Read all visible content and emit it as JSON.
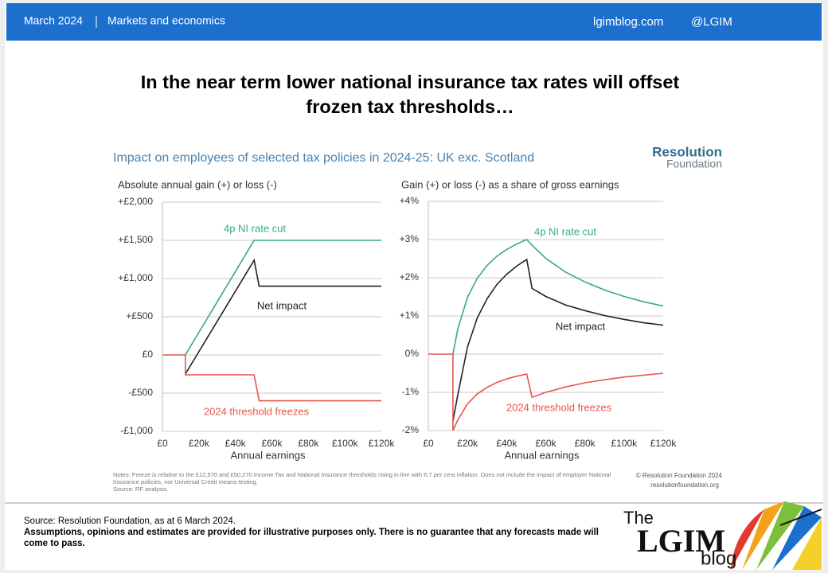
{
  "header": {
    "date": "March 2024",
    "section": "Markets and economics",
    "site": "lgimblog.com",
    "handle": "@LGIM"
  },
  "title": "In the near term lower national insurance tax rates will offset frozen tax thresholds…",
  "figure": {
    "title": "Impact on employees of selected tax policies in 2024-25: UK exc. Scotland",
    "brand": [
      "Resolution",
      "Foundation"
    ],
    "notes": "Notes: Freeze is relative to the £12,570 and £50,270 Income Tax and National Insurance thresholds rising in line with 6.7 per cent inflation. Does not include the impact of employer National Insurance policies, nor Universal Credit means-testing.",
    "source": "Source: RF analysis.",
    "copyright": "© Resolution Foundation 2024",
    "url": "resolutionfoundation.org"
  },
  "chart_data": [
    {
      "type": "line",
      "ylabel": "Absolute annual gain (+) or loss (-)",
      "xlabel": "Annual earnings",
      "xlim": [
        0,
        120000
      ],
      "xticks": [
        {
          "value": 0,
          "label": "£0"
        },
        {
          "value": 20000,
          "label": "£20k"
        },
        {
          "value": 40000,
          "label": "£40k"
        },
        {
          "value": 60000,
          "label": "£60k"
        },
        {
          "value": 80000,
          "label": "£80k"
        },
        {
          "value": 100000,
          "label": "£100k"
        },
        {
          "value": 120000,
          "label": "£120k"
        }
      ],
      "ylim": [
        -1000,
        2000
      ],
      "yticks": [
        {
          "value": 2000,
          "label": "+£2,000"
        },
        {
          "value": 1500,
          "label": "+£1,500"
        },
        {
          "value": 1000,
          "label": "+£1,000"
        },
        {
          "value": 500,
          "label": "+£500"
        },
        {
          "value": 0,
          "label": "£0"
        },
        {
          "value": -500,
          "label": "-£500"
        },
        {
          "value": -1000,
          "label": "-£1,000"
        }
      ],
      "grid": true,
      "series": [
        {
          "name": "4p NI rate cut",
          "color": "#3aa97c",
          "x": [
            12570,
            50270,
            120000
          ],
          "values": [
            0,
            1500,
            1500
          ]
        },
        {
          "name": "Net impact",
          "color": "#222222",
          "x": [
            12570,
            50270,
            53000,
            120000
          ],
          "values": [
            -250,
            1240,
            900,
            900
          ]
        },
        {
          "name": "2024 threshold freezes",
          "color": "#e8544b",
          "x": [
            0,
            12570,
            12570,
            50270,
            53000,
            120000
          ],
          "values": [
            0,
            0,
            -260,
            -260,
            -600,
            -600
          ]
        }
      ]
    },
    {
      "type": "line",
      "ylabel": "Gain (+) or loss (-) as a share of gross earnings",
      "xlabel": "Annual earnings",
      "xlim": [
        0,
        120000
      ],
      "xticks": [
        {
          "value": 0,
          "label": "£0"
        },
        {
          "value": 20000,
          "label": "£20k"
        },
        {
          "value": 40000,
          "label": "£40k"
        },
        {
          "value": 60000,
          "label": "£60k"
        },
        {
          "value": 80000,
          "label": "£80k"
        },
        {
          "value": 100000,
          "label": "£100k"
        },
        {
          "value": 120000,
          "label": "£120k"
        }
      ],
      "ylim": [
        -2,
        4
      ],
      "yticks": [
        {
          "value": 4,
          "label": "+4%"
        },
        {
          "value": 3,
          "label": "+3%"
        },
        {
          "value": 2,
          "label": "+2%"
        },
        {
          "value": 1,
          "label": "+1%"
        },
        {
          "value": 0,
          "label": "0%"
        },
        {
          "value": -1,
          "label": "-1%"
        },
        {
          "value": -2,
          "label": "-2%"
        }
      ],
      "grid": true,
      "series": [
        {
          "name": "4p NI rate cut",
          "color": "#3aa97c",
          "x": [
            12570,
            15000,
            20000,
            25000,
            30000,
            35000,
            40000,
            45000,
            50270,
            53000,
            60000,
            70000,
            80000,
            90000,
            100000,
            110000,
            120000
          ],
          "values": [
            0,
            0.65,
            1.49,
            1.99,
            2.32,
            2.56,
            2.74,
            2.88,
            3.0,
            2.85,
            2.51,
            2.15,
            1.89,
            1.68,
            1.51,
            1.37,
            1.26
          ]
        },
        {
          "name": "Net impact",
          "color": "#222222",
          "x": [
            12570,
            15000,
            20000,
            25000,
            30000,
            35000,
            40000,
            45000,
            50270,
            53000,
            60000,
            70000,
            80000,
            90000,
            100000,
            110000,
            120000
          ],
          "values": [
            -1.75,
            -1.08,
            0.19,
            0.95,
            1.45,
            1.82,
            2.09,
            2.3,
            2.48,
            1.72,
            1.51,
            1.29,
            1.14,
            1.01,
            0.91,
            0.82,
            0.76
          ]
        },
        {
          "name": "2024 threshold freezes",
          "color": "#e8544b",
          "x": [
            0,
            12570,
            12570,
            15000,
            20000,
            25000,
            30000,
            35000,
            40000,
            45000,
            50270,
            53000,
            60000,
            70000,
            80000,
            90000,
            100000,
            110000,
            120000
          ],
          "values": [
            0,
            0,
            -2.0,
            -1.73,
            -1.3,
            -1.04,
            -0.87,
            -0.74,
            -0.65,
            -0.58,
            -0.52,
            -1.13,
            -1.0,
            -0.86,
            -0.75,
            -0.67,
            -0.6,
            -0.55,
            -0.5
          ]
        }
      ]
    }
  ],
  "footer": {
    "source": "Source: Resolution Foundation, as at 6 March 2024.",
    "disclaimer": "Assumptions, opinions and estimates are provided for illustrative purposes only. There is no guarantee that any forecasts made will come to pass."
  },
  "logo": {
    "pre": "The",
    "name": "LGIM",
    "post": "blog"
  }
}
